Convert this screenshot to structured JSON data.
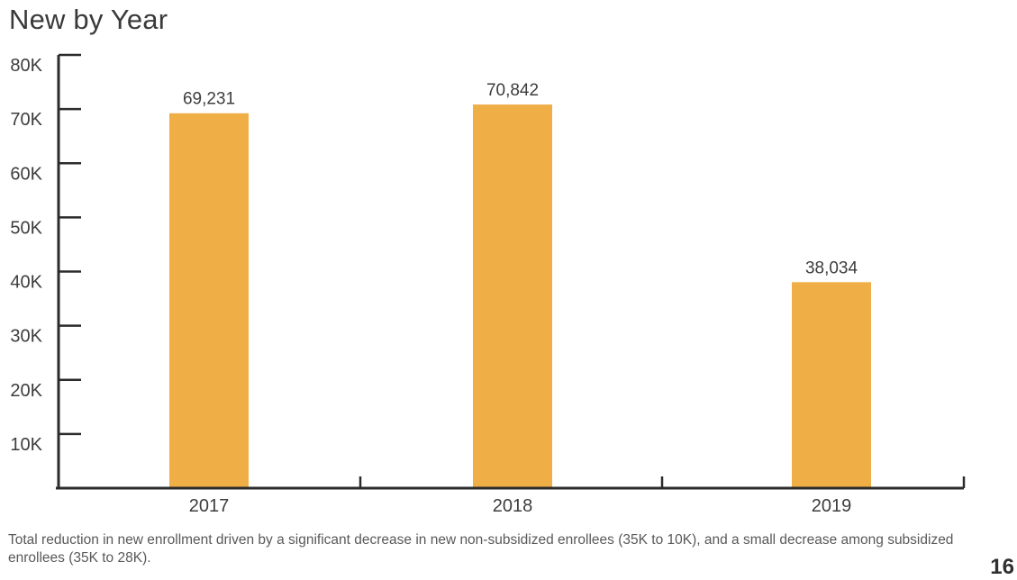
{
  "page": {
    "title": "New by Year",
    "footnote": "Total reduction in new enrollment driven by a significant decrease in new non-subsidized enrollees (35K to 10K), and a small decrease among subsidized enrollees (35K to 28K).",
    "page_number": "16"
  },
  "colors": {
    "bar": "#F0AE46",
    "axis": "#2B2B2B",
    "title_text": "#3A3A3A",
    "label_text": "#3D3D3D",
    "footnote_text": "#595959",
    "page_number_text": "#303030"
  },
  "chart_data": {
    "type": "bar",
    "title": "New by Year",
    "categories": [
      "2017",
      "2018",
      "2019"
    ],
    "values": [
      69231,
      70842,
      38034
    ],
    "value_labels": [
      "69,231",
      "70,842",
      "38,034"
    ],
    "ylim": [
      0,
      80000
    ],
    "yticks": [
      10000,
      20000,
      30000,
      40000,
      50000,
      60000,
      70000,
      80000
    ],
    "ytick_labels": [
      "10K",
      "20K",
      "30K",
      "40K",
      "50K",
      "60K",
      "70K",
      "80K"
    ],
    "xlabel": "",
    "ylabel": "",
    "grid": false,
    "legend": "none",
    "bar_color": "#F0AE46",
    "tick_style": "inward"
  }
}
